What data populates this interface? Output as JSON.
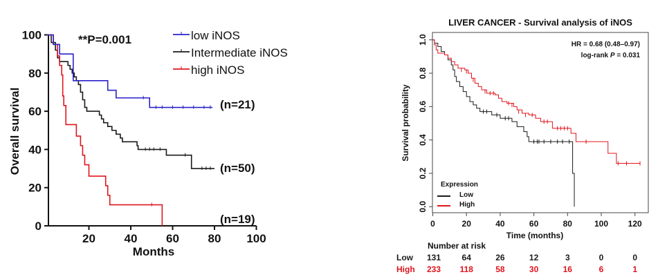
{
  "chart_data": [
    {
      "type": "line",
      "subtype": "kaplan-meier",
      "title": "",
      "xlabel": "Months",
      "ylabel": "Overall survival",
      "xlim": [
        0,
        100
      ],
      "ylim": [
        0,
        100
      ],
      "xticks": [
        20,
        40,
        60,
        80,
        100
      ],
      "yticks": [
        0,
        20,
        40,
        60,
        80,
        100
      ],
      "grid": false,
      "legend_position": "top-right",
      "annotation": "**P=0.001",
      "series": [
        {
          "name": "low iNOS",
          "color": "#2a22c8",
          "n_label": "(n=21)",
          "steps": [
            [
              0,
              100
            ],
            [
              3,
              95
            ],
            [
              6,
              90
            ],
            [
              12.5,
              76
            ],
            [
              29,
              71
            ],
            [
              33,
              67
            ],
            [
              49,
              62
            ],
            [
              79,
              62
            ]
          ],
          "censored": [
            [
              46,
              67
            ],
            [
              52,
              62
            ],
            [
              55,
              62
            ],
            [
              60,
              62
            ],
            [
              65,
              62
            ],
            [
              70,
              62
            ],
            [
              75,
              62
            ],
            [
              78,
              62
            ]
          ]
        },
        {
          "name": "Intermediate iNOS",
          "color": "#1a1a1a",
          "n_label": "(n=50)",
          "steps": [
            [
              0,
              100
            ],
            [
              2,
              96
            ],
            [
              4,
              92
            ],
            [
              5,
              88
            ],
            [
              6,
              86
            ],
            [
              10,
              84
            ],
            [
              11,
              82
            ],
            [
              12,
              80
            ],
            [
              13,
              78
            ],
            [
              14,
              76
            ],
            [
              15,
              74
            ],
            [
              16,
              70
            ],
            [
              17,
              66
            ],
            [
              18,
              62
            ],
            [
              19,
              60
            ],
            [
              25,
              58
            ],
            [
              26,
              56
            ],
            [
              27,
              54
            ],
            [
              29,
              52
            ],
            [
              31,
              50
            ],
            [
              33,
              48
            ],
            [
              35,
              46
            ],
            [
              36,
              44
            ],
            [
              43,
              42
            ],
            [
              43.5,
              40
            ],
            [
              57,
              37
            ],
            [
              69,
              30
            ],
            [
              80,
              30
            ]
          ],
          "censored": [
            [
              47,
              40
            ],
            [
              49,
              40
            ],
            [
              51,
              40
            ],
            [
              54,
              40
            ],
            [
              66,
              37
            ],
            [
              74,
              30
            ],
            [
              76,
              30
            ],
            [
              78,
              30
            ]
          ]
        },
        {
          "name": "high iNOS",
          "color": "#e0141c",
          "n_label": "(n=19)",
          "steps": [
            [
              0,
              100
            ],
            [
              3,
              95
            ],
            [
              5,
              89
            ],
            [
              6,
              84
            ],
            [
              7,
              79
            ],
            [
              7.5,
              68
            ],
            [
              8,
              63
            ],
            [
              9,
              53
            ],
            [
              14,
              47
            ],
            [
              16,
              42
            ],
            [
              17,
              37
            ],
            [
              18,
              32
            ],
            [
              20,
              26
            ],
            [
              28,
              21
            ],
            [
              29,
              16
            ],
            [
              30,
              11
            ],
            [
              55,
              11
            ],
            [
              55,
              0
            ]
          ],
          "censored": [
            [
              50,
              11
            ]
          ]
        }
      ]
    },
    {
      "type": "line",
      "subtype": "kaplan-meier",
      "title": "LIVER CANCER - Survival analysis of iNOS",
      "xlabel": "Time (months)",
      "ylabel": "Survival probability",
      "xlim": [
        0,
        125
      ],
      "ylim": [
        0,
        1.0
      ],
      "xticks": [
        0,
        20,
        40,
        60,
        80,
        100,
        120
      ],
      "yticks": [
        "0.0",
        "0.2",
        "0.4",
        "0.6",
        "0.8",
        "1.0"
      ],
      "grid": false,
      "legend_position": "bottom-left",
      "legend_title": "Expression",
      "annotations": {
        "hr": "HR = 0.68 (0.48–0.97)",
        "logrank_prefix": "log-rank ",
        "logrank_p": "P",
        "logrank_value": " = 0.031"
      },
      "series": [
        {
          "name": "Low",
          "color": "#1a1a1a",
          "steps": [
            [
              0,
              1.0
            ],
            [
              1,
              0.98
            ],
            [
              3,
              0.96
            ],
            [
              5,
              0.93
            ],
            [
              7,
              0.91
            ],
            [
              9,
              0.88
            ],
            [
              11,
              0.85
            ],
            [
              12,
              0.82
            ],
            [
              13,
              0.78
            ],
            [
              14,
              0.75
            ],
            [
              16,
              0.72
            ],
            [
              18,
              0.69
            ],
            [
              20,
              0.66
            ],
            [
              22,
              0.63
            ],
            [
              24,
              0.61
            ],
            [
              26,
              0.59
            ],
            [
              28,
              0.57
            ],
            [
              35,
              0.55
            ],
            [
              40,
              0.53
            ],
            [
              47,
              0.51
            ],
            [
              50,
              0.48
            ],
            [
              54,
              0.45
            ],
            [
              56,
              0.42
            ],
            [
              57,
              0.39
            ],
            [
              82,
              0.39
            ],
            [
              83,
              0.2
            ],
            [
              84,
              0.2
            ],
            [
              84,
              0.0
            ]
          ],
          "censored": [
            [
              30,
              0.57
            ],
            [
              32,
              0.57
            ],
            [
              38,
              0.55
            ],
            [
              43,
              0.53
            ],
            [
              45,
              0.53
            ],
            [
              60,
              0.39
            ],
            [
              62,
              0.39
            ],
            [
              63,
              0.39
            ],
            [
              66,
              0.39
            ],
            [
              70,
              0.39
            ],
            [
              74,
              0.39
            ],
            [
              77,
              0.39
            ],
            [
              81,
              0.39
            ]
          ]
        },
        {
          "name": "High",
          "color": "#e0141c",
          "steps": [
            [
              0,
              1.0
            ],
            [
              1,
              0.97
            ],
            [
              2,
              0.94
            ],
            [
              3,
              0.92
            ],
            [
              7,
              0.91
            ],
            [
              9,
              0.89
            ],
            [
              11,
              0.87
            ],
            [
              13,
              0.85
            ],
            [
              15,
              0.83
            ],
            [
              19,
              0.82
            ],
            [
              21,
              0.8
            ],
            [
              23,
              0.77
            ],
            [
              25,
              0.74
            ],
            [
              27,
              0.72
            ],
            [
              29,
              0.7
            ],
            [
              32,
              0.68
            ],
            [
              37,
              0.67
            ],
            [
              39,
              0.65
            ],
            [
              41,
              0.63
            ],
            [
              44,
              0.62
            ],
            [
              48,
              0.6
            ],
            [
              50,
              0.58
            ],
            [
              53,
              0.56
            ],
            [
              57,
              0.55
            ],
            [
              61,
              0.53
            ],
            [
              64,
              0.51
            ],
            [
              71,
              0.47
            ],
            [
              82,
              0.44
            ],
            [
              85,
              0.39
            ],
            [
              104,
              0.32
            ],
            [
              109,
              0.26
            ],
            [
              123,
              0.26
            ]
          ],
          "censored": [
            [
              17,
              0.82
            ],
            [
              20,
              0.81
            ],
            [
              24,
              0.76
            ],
            [
              31,
              0.69
            ],
            [
              34,
              0.68
            ],
            [
              36,
              0.68
            ],
            [
              45,
              0.62
            ],
            [
              47,
              0.61
            ],
            [
              51,
              0.57
            ],
            [
              55,
              0.55
            ],
            [
              59,
              0.55
            ],
            [
              66,
              0.51
            ],
            [
              68,
              0.51
            ],
            [
              74,
              0.47
            ],
            [
              76,
              0.47
            ],
            [
              78,
              0.47
            ],
            [
              80,
              0.47
            ],
            [
              91,
              0.39
            ],
            [
              110,
              0.26
            ],
            [
              115,
              0.26
            ],
            [
              123,
              0.26
            ]
          ]
        }
      ],
      "risk_table": {
        "title": "Number at risk",
        "times": [
          0,
          20,
          40,
          60,
          80,
          100,
          120
        ],
        "rows": [
          {
            "label": "Low",
            "color": "#1a1a1a",
            "values": [
              "131",
              "64",
              "26",
              "12",
              "3",
              "0",
              "0"
            ]
          },
          {
            "label": "High",
            "color": "#e0141c",
            "values": [
              "233",
              "118",
              "58",
              "30",
              "16",
              "6",
              "1"
            ]
          }
        ]
      }
    }
  ]
}
